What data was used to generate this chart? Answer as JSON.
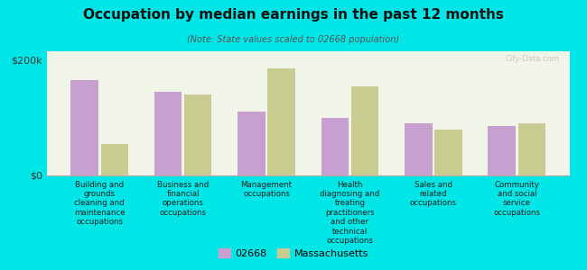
{
  "title": "Occupation by median earnings in the past 12 months",
  "subtitle": "(Note: State values scaled to 02668 population)",
  "background_color": "#00e5e5",
  "plot_bg_color": "#f0f5e8",
  "categories": [
    "Building and\ngrounds\ncleaning and\nmaintenance\noccupations",
    "Business and\nfinancial\noperations\noccupations",
    "Management\noccupations",
    "Health\ndiagnosing and\ntreating\npractitioners\nand other\ntechnical\noccupations",
    "Sales and\nrelated\noccupations",
    "Community\nand social\nservice\noccupations"
  ],
  "values_02668": [
    165000,
    145000,
    110000,
    100000,
    90000,
    85000
  ],
  "values_mass": [
    55000,
    140000,
    185000,
    155000,
    80000,
    90000
  ],
  "color_02668": "#c8a0d0",
  "color_mass": "#c8cc90",
  "ylabel": "$200k",
  "y0label": "$0",
  "ylim": [
    0,
    215000
  ],
  "legend_02668": "02668",
  "legend_mass": "Massachusetts",
  "watermark": "City-Data.com"
}
